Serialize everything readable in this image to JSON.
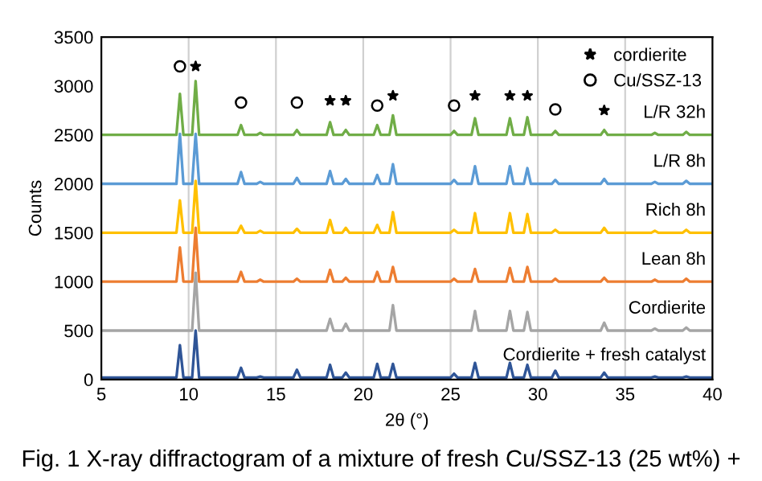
{
  "chart_data": {
    "type": "line",
    "xlabel": "2θ (°)",
    "ylabel": "Counts",
    "x": [
      5,
      9.3,
      9.5,
      9.7,
      10.2,
      10.4,
      10.6,
      12.8,
      13.0,
      13.2,
      13.9,
      14.1,
      14.3,
      16.0,
      16.2,
      16.4,
      17.9,
      18.1,
      18.3,
      18.8,
      19.0,
      19.2,
      20.6,
      20.8,
      21.0,
      21.5,
      21.7,
      21.9,
      25.0,
      25.2,
      25.4,
      26.2,
      26.4,
      26.6,
      28.2,
      28.4,
      28.6,
      29.2,
      29.4,
      29.6,
      30.8,
      31.0,
      31.2,
      33.6,
      33.8,
      34.0,
      36.5,
      36.7,
      36.9,
      38.3,
      38.5,
      38.7,
      40
    ],
    "series": [
      {
        "name": "L/R 32h",
        "color": "#70ad47",
        "values": [
          2500,
          2500,
          2920,
          2500,
          2500,
          3050,
          2500,
          2500,
          2600,
          2500,
          2500,
          2520,
          2500,
          2500,
          2550,
          2500,
          2500,
          2630,
          2500,
          2500,
          2550,
          2500,
          2500,
          2600,
          2500,
          2500,
          2700,
          2500,
          2500,
          2540,
          2500,
          2500,
          2670,
          2500,
          2500,
          2670,
          2500,
          2500,
          2680,
          2500,
          2500,
          2540,
          2500,
          2500,
          2550,
          2500,
          2500,
          2520,
          2500,
          2500,
          2530,
          2500,
          2500
        ]
      },
      {
        "name": "L/R 8h",
        "color": "#5b9bd5",
        "values": [
          2000,
          2000,
          2510,
          2000,
          2000,
          2510,
          2000,
          2000,
          2120,
          2000,
          2000,
          2020,
          2000,
          2000,
          2060,
          2000,
          2000,
          2130,
          2000,
          2000,
          2050,
          2000,
          2000,
          2090,
          2000,
          2000,
          2200,
          2000,
          2000,
          2040,
          2000,
          2000,
          2180,
          2000,
          2000,
          2180,
          2000,
          2000,
          2160,
          2000,
          2000,
          2040,
          2000,
          2000,
          2050,
          2000,
          2000,
          2020,
          2000,
          2000,
          2030,
          2000,
          2000
        ]
      },
      {
        "name": "Rich 8h",
        "color": "#ffc000",
        "values": [
          1500,
          1500,
          1830,
          1500,
          1500,
          2030,
          1500,
          1500,
          1570,
          1500,
          1500,
          1520,
          1500,
          1500,
          1540,
          1500,
          1500,
          1630,
          1500,
          1500,
          1550,
          1500,
          1500,
          1580,
          1500,
          1500,
          1710,
          1500,
          1500,
          1530,
          1500,
          1500,
          1700,
          1500,
          1500,
          1700,
          1500,
          1500,
          1690,
          1500,
          1500,
          1530,
          1500,
          1500,
          1550,
          1500,
          1500,
          1520,
          1500,
          1500,
          1530,
          1500,
          1500
        ]
      },
      {
        "name": "Lean 8h",
        "color": "#ed7d31",
        "values": [
          1000,
          1000,
          1350,
          1000,
          1000,
          1550,
          1000,
          1000,
          1100,
          1000,
          1000,
          1020,
          1000,
          1000,
          1030,
          1000,
          1000,
          1120,
          1000,
          1000,
          1040,
          1000,
          1000,
          1100,
          1000,
          1000,
          1150,
          1000,
          1000,
          1030,
          1000,
          1000,
          1130,
          1000,
          1000,
          1140,
          1000,
          1000,
          1150,
          1000,
          1000,
          1030,
          1000,
          1000,
          1040,
          1000,
          1000,
          1020,
          1000,
          1000,
          1030,
          1000,
          1000
        ]
      },
      {
        "name": "Cordierite",
        "color": "#a5a5a5",
        "values": [
          500,
          500,
          500,
          500,
          500,
          1090,
          500,
          500,
          500,
          500,
          500,
          500,
          500,
          500,
          500,
          500,
          500,
          620,
          500,
          500,
          570,
          500,
          500,
          500,
          500,
          500,
          760,
          500,
          500,
          500,
          500,
          500,
          700,
          500,
          500,
          700,
          500,
          500,
          690,
          500,
          500,
          500,
          500,
          500,
          580,
          500,
          500,
          520,
          500,
          500,
          530,
          500,
          500
        ]
      },
      {
        "name": "Cordierite + fresh catalyst",
        "color": "#2f5597",
        "values": [
          20,
          20,
          350,
          20,
          20,
          500,
          20,
          20,
          120,
          20,
          20,
          30,
          20,
          20,
          100,
          20,
          20,
          150,
          20,
          20,
          70,
          20,
          20,
          160,
          20,
          20,
          160,
          20,
          20,
          60,
          20,
          20,
          170,
          20,
          20,
          170,
          20,
          20,
          150,
          20,
          20,
          90,
          20,
          20,
          70,
          20,
          20,
          30,
          20,
          20,
          30,
          20,
          20
        ]
      },
      {
        "name": "cordierite",
        "type": "scatter",
        "marker": "star",
        "color": "#000000",
        "x": [
          10.4,
          18.1,
          19.0,
          21.7,
          26.4,
          28.4,
          29.4,
          33.8
        ],
        "values": [
          3200,
          2850,
          2850,
          2900,
          2900,
          2900,
          2900,
          2750
        ]
      },
      {
        "name": "Cu/SSZ-13",
        "type": "scatter",
        "marker": "circle",
        "color": "#000000",
        "x": [
          9.5,
          13.0,
          16.2,
          20.8,
          25.2,
          31.0
        ],
        "values": [
          3200,
          2830,
          2830,
          2800,
          2800,
          2760
        ]
      }
    ],
    "xlim": [
      5,
      40
    ],
    "xticks": [
      5,
      10,
      15,
      20,
      25,
      30,
      35,
      40
    ],
    "ylim": [
      0,
      3500
    ],
    "yticks": [
      0,
      500,
      1000,
      1500,
      2000,
      2500,
      3000,
      3500
    ],
    "grid": "x",
    "legend": "top right",
    "annotations": [
      "Fig. 1 X-ray diffractogram of a mixture of fresh Cu/SSZ-13 (25 wt%) +"
    ]
  }
}
